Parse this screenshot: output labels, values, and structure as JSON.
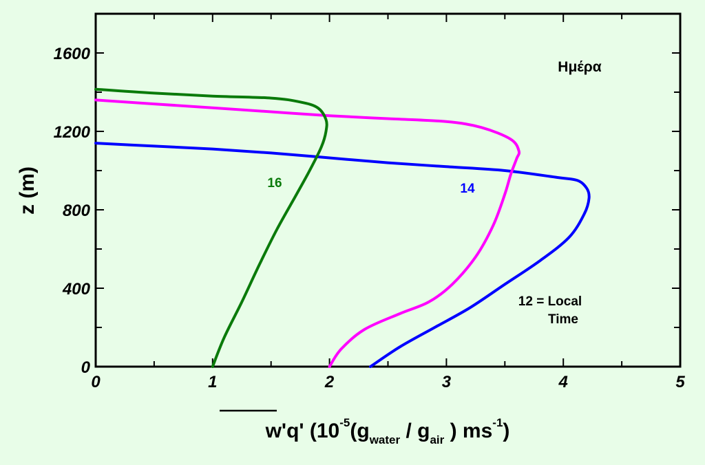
{
  "chart_data": {
    "type": "line",
    "title": "Ημέρα",
    "ylabel": "z (m)",
    "xlabel": {
      "overline": "w'q'",
      "p1": " (10",
      "exp1": "-5",
      "p2": "(g",
      "sub1": "water",
      "p3": " / g",
      "sub2": "air",
      "p4": " ) ms",
      "exp2": "-1",
      "p5": ")"
    },
    "xlim": [
      0,
      5
    ],
    "ylim": [
      0,
      1800
    ],
    "xticks": [
      "0",
      "1",
      "2",
      "3",
      "4",
      "5"
    ],
    "yticks": [
      "0",
      "400",
      "800",
      "1200",
      "1600"
    ],
    "grid": false,
    "annotations": {
      "t12_line1": "12 = Local",
      "t12_line2": "Time"
    },
    "series": [
      {
        "name": "12",
        "color": "#0000ff",
        "label_pos": [],
        "x": [
          2.35,
          2.6,
          2.9,
          3.2,
          3.5,
          3.8,
          4.05,
          4.18,
          4.22,
          4.2,
          4.12,
          3.95,
          3.5,
          3.0,
          2.5,
          2.0,
          1.5,
          1.0,
          0.5,
          0.0
        ],
        "y": [
          0,
          100,
          200,
          300,
          420,
          540,
          660,
          780,
          860,
          910,
          950,
          965,
          1000,
          1020,
          1040,
          1065,
          1090,
          1110,
          1125,
          1140
        ]
      },
      {
        "name": "14",
        "color": "#ff00ff",
        "x": [
          2.0,
          2.1,
          2.3,
          2.6,
          2.85,
          3.05,
          3.25,
          3.4,
          3.5,
          3.55,
          3.6,
          3.62,
          3.55,
          3.3,
          3.0,
          2.5,
          2.0,
          1.5,
          1.0,
          0.5,
          0.0
        ],
        "y": [
          0,
          90,
          190,
          270,
          330,
          420,
          560,
          720,
          880,
          980,
          1060,
          1100,
          1160,
          1220,
          1250,
          1265,
          1280,
          1300,
          1320,
          1340,
          1360
        ]
      },
      {
        "name": "16",
        "color": "#0a7a0a",
        "x": [
          1.0,
          1.1,
          1.25,
          1.4,
          1.55,
          1.7,
          1.83,
          1.93,
          1.97,
          1.97,
          1.9,
          1.75,
          1.5,
          1.0,
          0.5,
          0.0
        ],
        "y": [
          0,
          150,
          330,
          520,
          700,
          860,
          1000,
          1120,
          1200,
          1260,
          1320,
          1350,
          1370,
          1380,
          1395,
          1415
        ]
      }
    ],
    "series_labels": [
      "16",
      "14"
    ]
  }
}
